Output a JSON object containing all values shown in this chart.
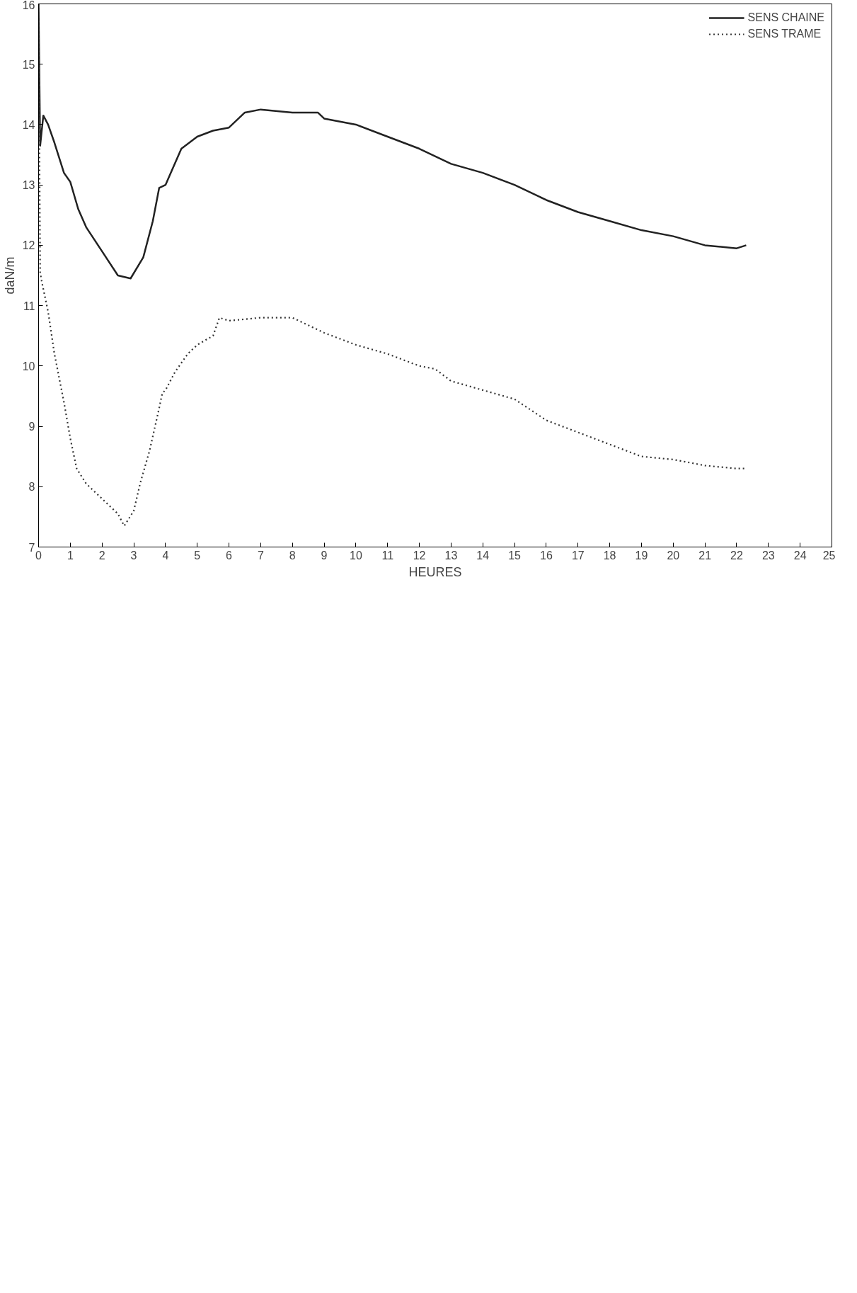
{
  "chart_data": {
    "type": "line",
    "xlabel": "HEURES",
    "ylabel": "daN/m",
    "x": [
      0,
      0.05,
      0.15,
      0.3,
      0.5,
      0.8,
      1.0,
      1.25,
      1.5,
      2.0,
      2.5,
      2.9,
      3.3,
      3.6,
      3.8,
      4.0,
      4.5,
      5.0,
      5.5,
      6.0,
      6.5,
      7.0,
      8.0,
      8.8,
      9.0,
      10.0,
      11.0,
      12.0,
      13.0,
      14.0,
      15.0,
      16.0,
      17.0,
      18.0,
      19.0,
      20.0,
      21.0,
      22.0,
      22.3
    ],
    "series": [
      {
        "name": "SENS CHAINE",
        "color": "#222222",
        "line_style": "solid",
        "values": [
          16,
          13.65,
          14.15,
          14.0,
          13.7,
          13.2,
          13.05,
          12.6,
          12.3,
          11.9,
          11.5,
          11.45,
          11.8,
          12.4,
          12.95,
          13.0,
          13.6,
          13.8,
          13.9,
          13.95,
          14.2,
          14.25,
          14.2,
          14.2,
          14.1,
          14.0,
          13.8,
          13.6,
          13.35,
          13.2,
          13.0,
          12.75,
          12.55,
          12.4,
          12.25,
          12.15,
          12.0,
          11.95,
          12.0
        ]
      },
      {
        "name": "SENS TRAME",
        "color": "#333333",
        "line_style": "dotted",
        "x": [
          0,
          0.05,
          0.1,
          0.3,
          0.5,
          0.8,
          1.0,
          1.2,
          1.5,
          2.0,
          2.5,
          2.7,
          3.0,
          3.2,
          3.5,
          3.8,
          3.9,
          4.0,
          4.3,
          4.7,
          5.0,
          5.5,
          5.7,
          6.0,
          7.0,
          8.0,
          9.0,
          10.0,
          11.0,
          12.0,
          12.5,
          13.0,
          14.0,
          15.0,
          16.0,
          17.0,
          18.0,
          19.0,
          20.0,
          21.0,
          22.0,
          22.3
        ],
        "values": [
          16,
          11.55,
          11.4,
          10.9,
          10.2,
          9.4,
          8.8,
          8.3,
          8.05,
          7.8,
          7.55,
          7.35,
          7.6,
          8.05,
          8.6,
          9.3,
          9.55,
          9.6,
          9.9,
          10.2,
          10.35,
          10.5,
          10.8,
          10.75,
          10.8,
          10.8,
          10.55,
          10.35,
          10.2,
          10.0,
          9.95,
          9.75,
          9.6,
          9.45,
          9.1,
          8.9,
          8.7,
          8.5,
          8.45,
          8.35,
          8.3,
          8.3
        ]
      }
    ],
    "xlim": [
      0,
      25
    ],
    "xticks": [
      0,
      1,
      2,
      3,
      4,
      5,
      6,
      7,
      8,
      9,
      10,
      11,
      12,
      13,
      14,
      15,
      16,
      17,
      18,
      19,
      20,
      21,
      22,
      23,
      24,
      25
    ],
    "ylim": [
      7,
      16
    ],
    "yticks": [
      7,
      8,
      9,
      10,
      11,
      12,
      13,
      14,
      15,
      16
    ],
    "grid": false,
    "legend": "top right"
  }
}
